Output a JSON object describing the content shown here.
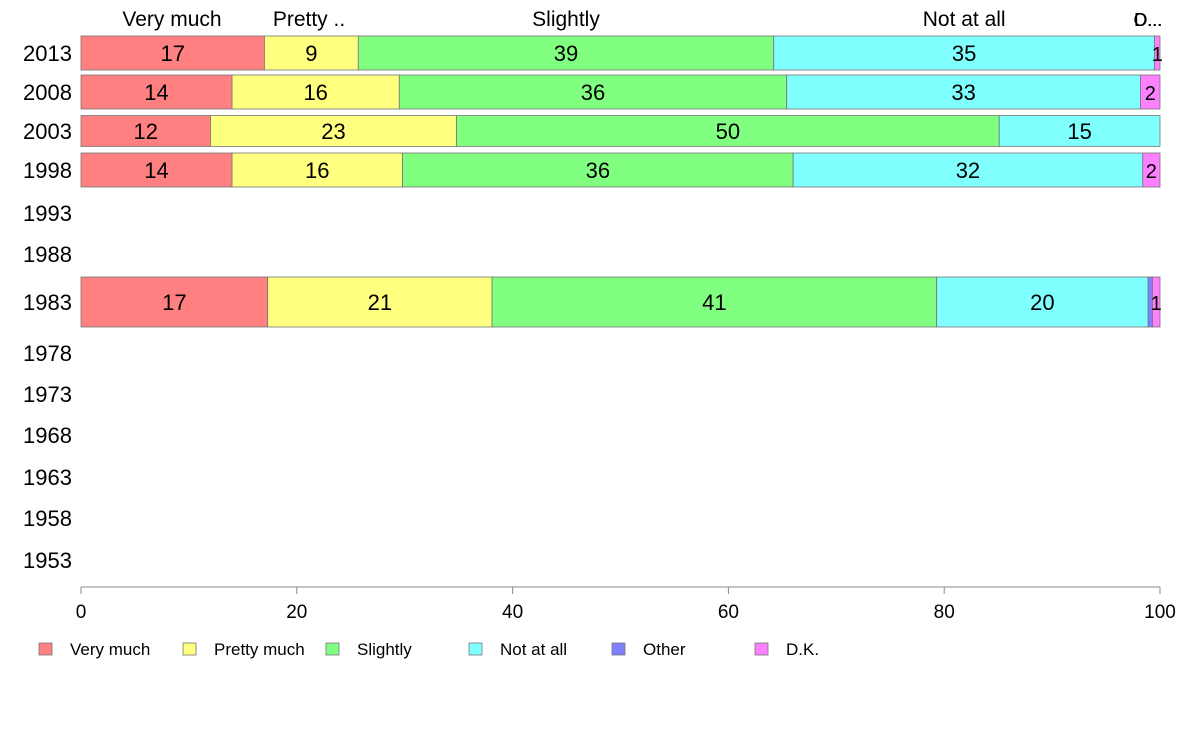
{
  "chart_data": {
    "type": "bar",
    "orientation": "horizontal",
    "stacked": true,
    "categories": [
      "2013",
      "2008",
      "2003",
      "1998",
      "1993",
      "1988",
      "1983",
      "1978",
      "1973",
      "1968",
      "1963",
      "1958",
      "1953"
    ],
    "series": [
      {
        "name": "Very much",
        "color": "#ff8080",
        "values": [
          17,
          14,
          12,
          14,
          null,
          null,
          17.3,
          null,
          null,
          null,
          null,
          null,
          null
        ]
      },
      {
        "name": "Pretty much",
        "color": "#ffff80",
        "values": [
          8.7,
          15.5,
          22.8,
          15.8,
          null,
          null,
          20.8,
          null,
          null,
          null,
          null,
          null,
          null
        ]
      },
      {
        "name": "Slightly",
        "color": "#80ff80",
        "values": [
          38.5,
          35.9,
          50.3,
          36.2,
          null,
          null,
          41.2,
          null,
          null,
          null,
          null,
          null,
          null
        ]
      },
      {
        "name": "Not at all",
        "color": "#80ffff",
        "values": [
          35.3,
          32.8,
          14.9,
          32.4,
          null,
          null,
          19.6,
          null,
          null,
          null,
          null,
          null,
          null
        ]
      },
      {
        "name": "Other",
        "color": "#8080ff",
        "values": [
          0,
          0,
          0,
          0,
          null,
          null,
          0.4,
          null,
          null,
          null,
          null,
          null,
          null
        ]
      },
      {
        "name": "D.K.",
        "color": "#ff80ff",
        "values": [
          0.5,
          1.8,
          0,
          1.6,
          null,
          null,
          0.7,
          null,
          null,
          null,
          null,
          null,
          null
        ]
      }
    ],
    "data_labels": [
      [
        "17",
        "9",
        "39",
        "35",
        "",
        "1"
      ],
      [
        "14",
        "16",
        "36",
        "33",
        "",
        "2"
      ],
      [
        "12",
        "23",
        "50",
        "15",
        "",
        ""
      ],
      [
        "14",
        "16",
        "36",
        "32",
        "",
        "2"
      ],
      [],
      [],
      [
        "17",
        "21",
        "41",
        "20",
        "",
        "1"
      ],
      [],
      [],
      [],
      [],
      [],
      []
    ],
    "top_labels": [
      "Very much",
      "Pretty ..",
      "Slightly",
      "Not at all",
      "O...",
      "D..."
    ],
    "xlim": [
      0,
      100
    ],
    "xticks": [
      "0",
      "20",
      "40",
      "60",
      "80",
      "100"
    ],
    "grid": false,
    "legend": {
      "position": "bottom",
      "items": [
        "Very much",
        "Pretty much",
        "Slightly",
        "Not at all",
        "Other",
        "D.K."
      ]
    },
    "title": "",
    "xlabel": "",
    "ylabel": ""
  }
}
